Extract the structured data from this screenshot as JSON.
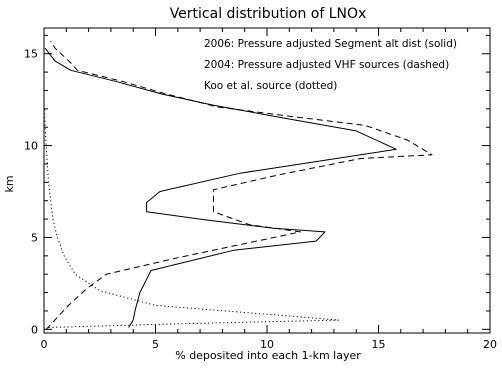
{
  "chart_data": {
    "type": "line",
    "title": "Vertical distribution of LNOx",
    "xlabel": "% deposited into each 1-km layer",
    "ylabel": "km",
    "xlim": [
      0,
      20
    ],
    "ylim": [
      -0.2,
      16.4
    ],
    "xticks": [
      0,
      5,
      10,
      15,
      20
    ],
    "yticks": [
      0,
      5,
      10,
      15
    ],
    "grid": false,
    "legend_placement": "top-right",
    "legend": [
      "2006: Pressure adjusted Segment alt dist (solid)",
      "2004: Pressure adjusted VHF sources (dashed)",
      "Koo et al. source (dotted)"
    ],
    "series": [
      {
        "style": "solid",
        "points": [
          [
            3.8,
            0.1
          ],
          [
            4.0,
            0.5
          ],
          [
            4.1,
            1.1
          ],
          [
            4.3,
            2.0
          ],
          [
            4.8,
            3.2
          ],
          [
            8.5,
            4.3
          ],
          [
            12.2,
            4.8
          ],
          [
            12.6,
            5.3
          ],
          [
            10.3,
            5.5
          ],
          [
            7.0,
            6.0
          ],
          [
            4.6,
            6.4
          ],
          [
            4.6,
            6.9
          ],
          [
            5.2,
            7.5
          ],
          [
            8.8,
            8.5
          ],
          [
            11.5,
            9.0
          ],
          [
            15.8,
            9.8
          ],
          [
            14.0,
            10.8
          ],
          [
            10.3,
            11.6
          ],
          [
            7.6,
            12.2
          ],
          [
            5.3,
            12.8
          ],
          [
            3.2,
            13.5
          ],
          [
            1.2,
            14.1
          ],
          [
            0.5,
            14.6
          ],
          [
            0.05,
            15.3
          ]
        ]
      },
      {
        "style": "dashed",
        "points": [
          [
            0.1,
            0.0
          ],
          [
            1.1,
            1.3
          ],
          [
            1.9,
            2.2
          ],
          [
            2.8,
            3.0
          ],
          [
            6.0,
            3.9
          ],
          [
            11.5,
            5.3
          ],
          [
            9.2,
            5.7
          ],
          [
            7.6,
            6.4
          ],
          [
            7.6,
            7.6
          ],
          [
            10.5,
            8.4
          ],
          [
            14.2,
            9.3
          ],
          [
            17.4,
            9.5
          ],
          [
            16.3,
            10.3
          ],
          [
            14.4,
            11.1
          ],
          [
            11.0,
            11.6
          ],
          [
            7.8,
            12.1
          ],
          [
            5.5,
            12.8
          ],
          [
            3.5,
            13.5
          ],
          [
            1.5,
            14.1
          ],
          [
            1.2,
            14.5
          ],
          [
            0.5,
            15.3
          ],
          [
            0.3,
            15.7
          ]
        ]
      },
      {
        "style": "dotted",
        "points": [
          [
            0.2,
            0.1
          ],
          [
            6.0,
            0.3
          ],
          [
            13.2,
            0.5
          ],
          [
            10.2,
            0.8
          ],
          [
            5.0,
            1.3
          ],
          [
            2.5,
            2.1
          ],
          [
            1.4,
            3.0
          ],
          [
            0.9,
            4.0
          ],
          [
            0.6,
            5.0
          ],
          [
            0.4,
            6.0
          ],
          [
            0.3,
            7.0
          ],
          [
            0.2,
            8.0
          ],
          [
            0.15,
            9.0
          ],
          [
            0.1,
            10.0
          ],
          [
            0.05,
            11.0
          ],
          [
            0.02,
            12.0
          ]
        ]
      }
    ]
  }
}
